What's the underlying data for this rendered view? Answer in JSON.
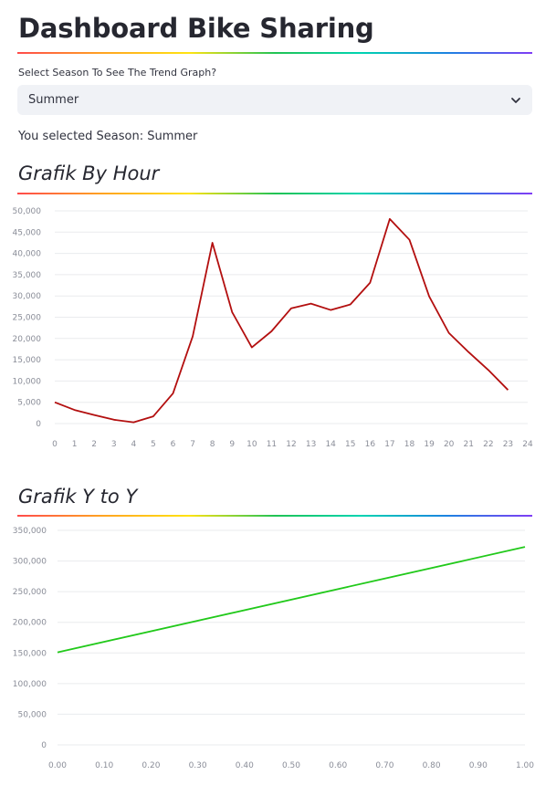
{
  "header": {
    "title": "Dashboard Bike Sharing"
  },
  "season_select": {
    "label": "Select Season To See The Trend Graph?",
    "value": "Summer",
    "chevron_icon": "chevron-down-icon"
  },
  "selection_message": "You selected Season: Summer",
  "sections": {
    "by_hour_title": "Grafik By Hour",
    "yoy_title": "Grafik Y to Y"
  },
  "colors": {
    "hour_line": "#b30f0f",
    "yoy_line": "#21c91a",
    "gridline": "#eaebee",
    "tick_text": "#8a8d98"
  },
  "chart_data": [
    {
      "type": "line",
      "x": [
        0,
        1,
        2,
        3,
        4,
        5,
        6,
        7,
        8,
        9,
        10,
        11,
        12,
        13,
        14,
        15,
        16,
        17,
        18,
        19,
        20,
        21,
        22,
        23
      ],
      "series": [
        {
          "values": [
            5000,
            3200,
            2000,
            900,
            300,
            1700,
            7100,
            20500,
            42500,
            26200,
            17900,
            21700,
            27100,
            28200,
            26700,
            28000,
            33100,
            48100,
            43200,
            29900,
            21300,
            16800,
            12600,
            7900
          ]
        }
      ],
      "x_ticks": [
        "0",
        "1",
        "2",
        "3",
        "4",
        "5",
        "6",
        "7",
        "8",
        "9",
        "10",
        "11",
        "12",
        "13",
        "14",
        "15",
        "16",
        "17",
        "18",
        "19",
        "20",
        "21",
        "22",
        "23",
        "24"
      ],
      "y_ticks": [
        "0",
        "5,000",
        "10,000",
        "15,000",
        "20,000",
        "25,000",
        "30,000",
        "35,000",
        "40,000",
        "45,000",
        "50,000"
      ],
      "xlim": [
        0,
        24
      ],
      "ylim": [
        0,
        50000
      ],
      "grid": true
    },
    {
      "type": "line",
      "x": [
        0,
        1
      ],
      "series": [
        {
          "values": [
            151000,
            323000
          ]
        }
      ],
      "x_ticks": [
        "0.00",
        "0.10",
        "0.20",
        "0.30",
        "0.40",
        "0.50",
        "0.60",
        "0.70",
        "0.80",
        "0.90",
        "1.00"
      ],
      "y_ticks": [
        "0",
        "50,000",
        "100,000",
        "150,000",
        "200,000",
        "250,000",
        "300,000",
        "350,000"
      ],
      "xlim": [
        0,
        1
      ],
      "ylim": [
        0,
        350000
      ],
      "grid": true
    }
  ]
}
